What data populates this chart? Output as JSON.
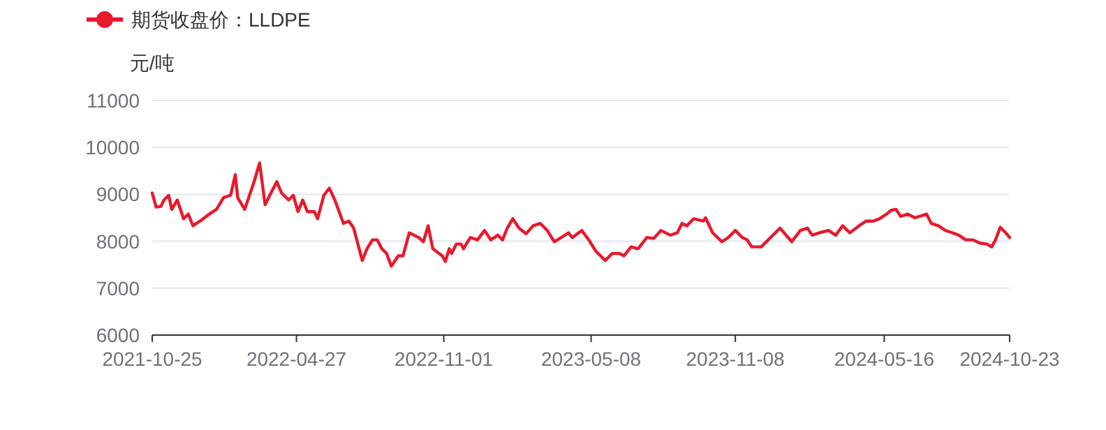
{
  "chart_data": {
    "type": "line",
    "ylabel": "元/吨",
    "legend": "top left",
    "grid": "y",
    "line_style": "solid",
    "xlim": [
      "2021-10-25",
      "2024-10-23"
    ],
    "xticks": [
      "2021-10-25",
      "2022-04-27",
      "2022-11-01",
      "2023-05-08",
      "2023-11-08",
      "2024-05-16",
      "2024-10-23"
    ],
    "ylim": [
      6000,
      11000
    ],
    "yticks": [
      6000,
      7000,
      8000,
      9000,
      10000,
      11000
    ],
    "x": [
      "2021-10-25",
      "2021-10-30",
      "2021-11-05",
      "2021-11-09",
      "2021-11-15",
      "2021-11-19",
      "2021-11-26",
      "2021-12-04",
      "2021-12-10",
      "2021-12-16",
      "2021-12-25",
      "2022-01-06",
      "2022-01-15",
      "2022-01-24",
      "2022-02-02",
      "2022-02-08",
      "2022-02-11",
      "2022-02-20",
      "2022-03-04",
      "2022-03-11",
      "2022-03-18",
      "2022-03-24",
      "2022-04-02",
      "2022-04-08",
      "2022-04-17",
      "2022-04-23",
      "2022-04-29",
      "2022-05-05",
      "2022-05-11",
      "2022-05-20",
      "2022-05-24",
      "2022-06-01",
      "2022-06-08",
      "2022-06-15",
      "2022-06-26",
      "2022-07-03",
      "2022-07-09",
      "2022-07-20",
      "2022-07-26",
      "2022-08-02",
      "2022-08-08",
      "2022-08-14",
      "2022-08-20",
      "2022-08-26",
      "2022-09-04",
      "2022-09-10",
      "2022-09-18",
      "2022-09-30",
      "2022-10-06",
      "2022-10-12",
      "2022-10-18",
      "2022-10-30",
      "2022-11-03",
      "2022-11-08",
      "2022-11-11",
      "2022-11-17",
      "2022-11-23",
      "2022-11-26",
      "2022-12-05",
      "2022-12-14",
      "2022-12-23",
      "2022-12-31",
      "2023-01-09",
      "2023-01-15",
      "2023-01-21",
      "2023-01-28",
      "2023-02-05",
      "2023-02-14",
      "2023-02-23",
      "2023-03-04",
      "2023-03-13",
      "2023-03-22",
      "2023-03-31",
      "2023-04-09",
      "2023-04-14",
      "2023-04-26",
      "2023-05-05",
      "2023-05-14",
      "2023-05-26",
      "2023-06-04",
      "2023-06-13",
      "2023-06-19",
      "2023-06-28",
      "2023-07-07",
      "2023-07-18",
      "2023-07-27",
      "2023-08-05",
      "2023-08-17",
      "2023-08-26",
      "2023-09-01",
      "2023-09-07",
      "2023-09-16",
      "2023-09-28",
      "2023-10-01",
      "2023-10-10",
      "2023-10-22",
      "2023-10-30",
      "2023-11-08",
      "2023-11-17",
      "2023-11-23",
      "2023-11-29",
      "2023-12-02",
      "2023-12-11",
      "2023-12-20",
      "2024-01-04",
      "2024-01-19",
      "2024-01-30",
      "2024-02-08",
      "2024-02-14",
      "2024-02-23",
      "2024-03-06",
      "2024-03-15",
      "2024-03-24",
      "2024-04-02",
      "2024-04-14",
      "2024-04-23",
      "2024-05-02",
      "2024-05-10",
      "2024-05-19",
      "2024-05-25",
      "2024-05-31",
      "2024-06-06",
      "2024-06-15",
      "2024-06-24",
      "2024-06-30",
      "2024-07-09",
      "2024-07-15",
      "2024-07-24",
      "2024-08-02",
      "2024-08-11",
      "2024-08-19",
      "2024-08-28",
      "2024-09-06",
      "2024-09-15",
      "2024-09-24",
      "2024-09-30",
      "2024-10-05",
      "2024-10-11",
      "2024-10-18",
      "2024-10-23"
    ],
    "series": [
      {
        "name": "期货收盘价：LLDPE",
        "color": "#e8192c",
        "values": [
          9030,
          8730,
          8740,
          8880,
          8980,
          8680,
          8880,
          8480,
          8580,
          8330,
          8430,
          8580,
          8680,
          8930,
          8980,
          9420,
          8930,
          8680,
          9270,
          9670,
          8780,
          8980,
          9270,
          9030,
          8880,
          8980,
          8630,
          8880,
          8630,
          8630,
          8480,
          8980,
          9130,
          8880,
          8380,
          8430,
          8280,
          7590,
          7840,
          8030,
          8030,
          7840,
          7740,
          7470,
          7690,
          7690,
          8180,
          8080,
          7990,
          8330,
          7840,
          7690,
          7570,
          7840,
          7740,
          7940,
          7940,
          7840,
          8080,
          8030,
          8230,
          8030,
          8130,
          8030,
          8280,
          8480,
          8280,
          8160,
          8330,
          8380,
          8230,
          7990,
          8080,
          8180,
          8080,
          8230,
          8030,
          7790,
          7590,
          7740,
          7740,
          7690,
          7880,
          7840,
          8080,
          8060,
          8230,
          8130,
          8180,
          8380,
          8330,
          8480,
          8430,
          8500,
          8180,
          7990,
          8080,
          8230,
          8080,
          8030,
          7880,
          7880,
          7880,
          8030,
          8280,
          7990,
          8230,
          8280,
          8130,
          8180,
          8230,
          8130,
          8330,
          8180,
          8330,
          8430,
          8430,
          8480,
          8580,
          8660,
          8680,
          8530,
          8580,
          8500,
          8530,
          8580,
          8380,
          8330,
          8230,
          8180,
          8130,
          8030,
          8030,
          7960,
          7940,
          7880,
          8030,
          8300,
          8180,
          8080
        ]
      }
    ]
  }
}
